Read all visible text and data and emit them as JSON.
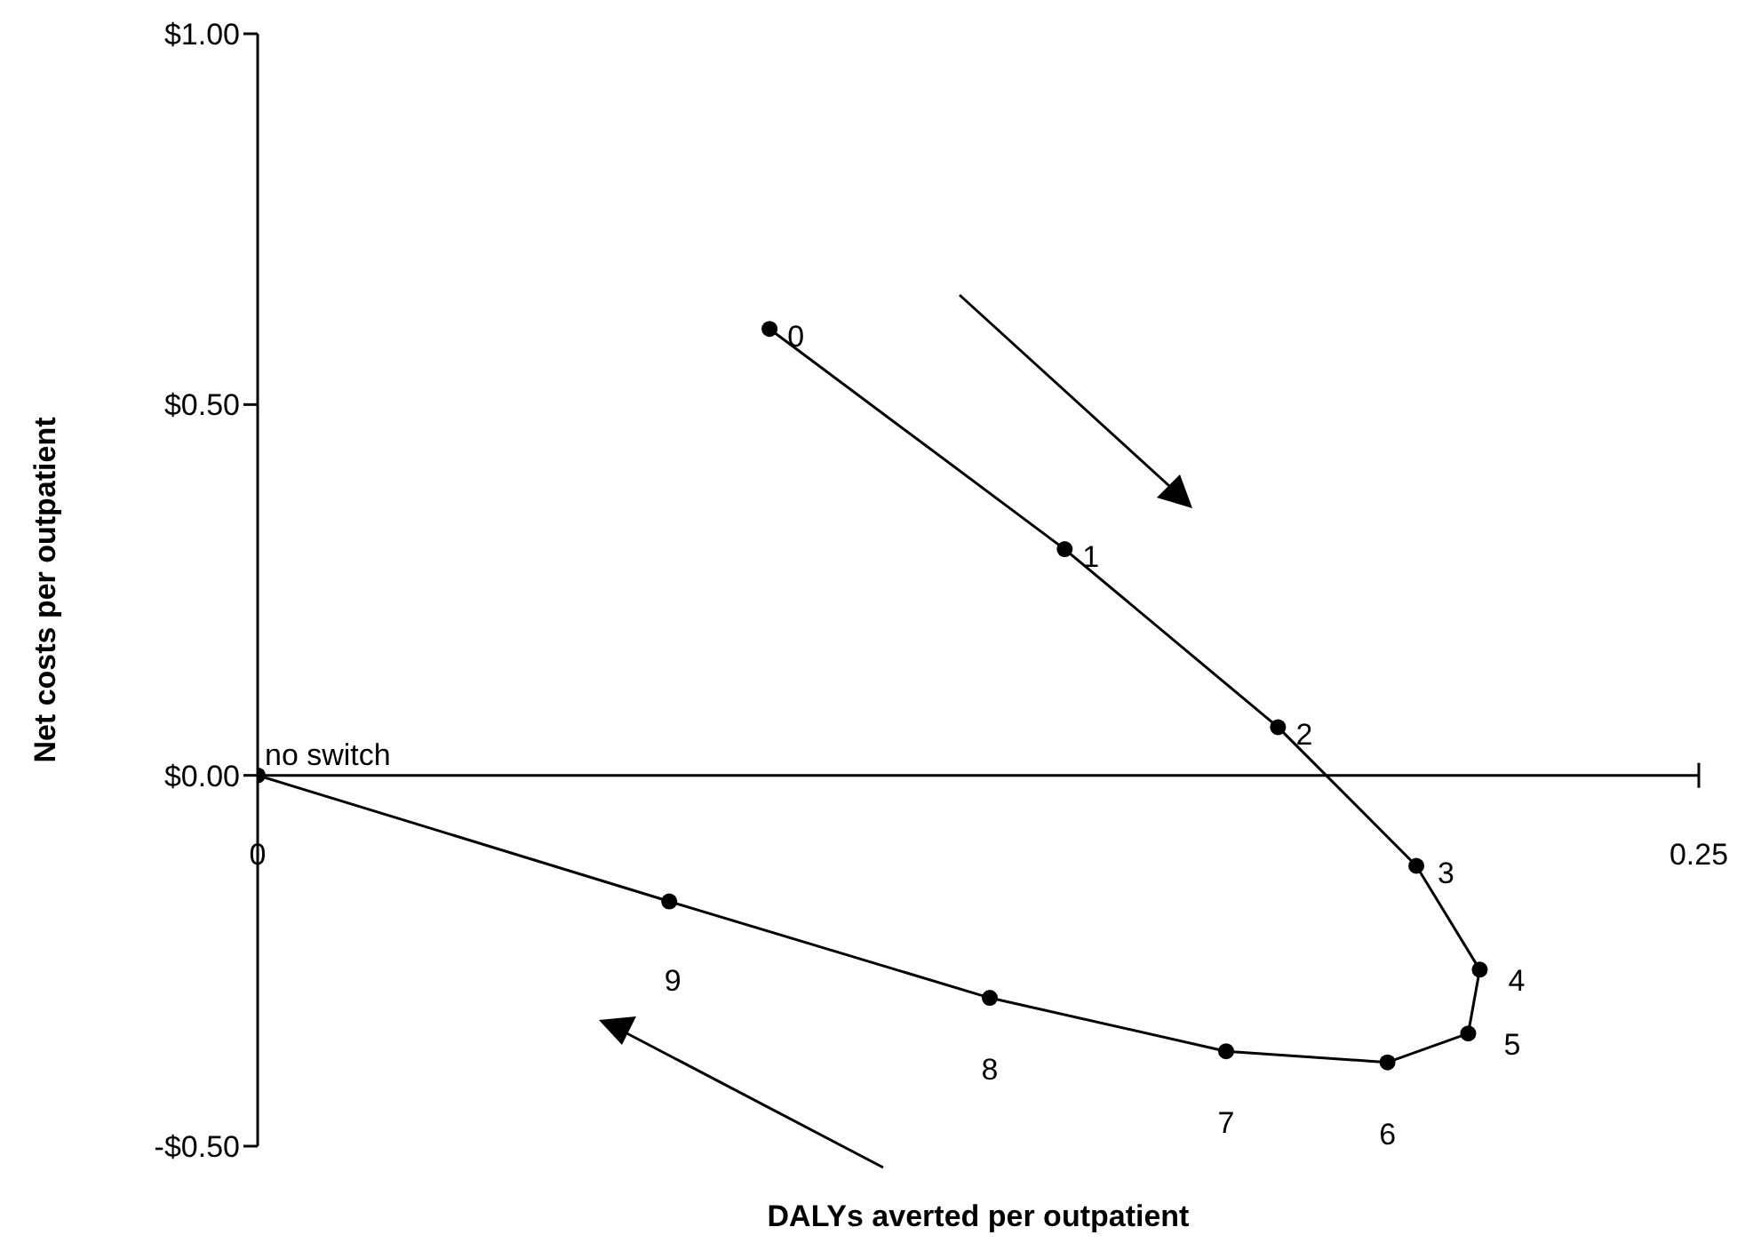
{
  "chart_data": {
    "type": "line",
    "xlabel": "DALYs averted per outpatient",
    "ylabel": "Net costs per outpatient",
    "series": [
      {
        "color": "#000000",
        "x": [
          0.0888,
          0.14,
          0.177,
          0.201,
          0.212,
          0.21,
          0.196,
          0.168,
          0.127,
          0.0714,
          0
        ],
        "values": [
          0.602,
          0.305,
          0.065,
          -0.122,
          -0.262,
          -0.348,
          -0.387,
          -0.372,
          -0.3,
          -0.17,
          0
        ]
      }
    ],
    "xlim": [
      0,
      0.25
    ],
    "xticks": [
      0,
      0.25
    ],
    "ylim": [
      -0.5,
      1
    ],
    "yticks": [
      {
        "value": -0.5,
        "label": "-$0.50"
      },
      {
        "value": 0,
        "label": "$0.00"
      },
      {
        "value": 0.5,
        "label": "$0.50"
      },
      {
        "value": 1,
        "label": "$1.00"
      }
    ],
    "marker": "circle",
    "line_style": "solid",
    "grid": false,
    "legend": false,
    "annotations": [
      {
        "text": "no switch",
        "x": 0,
        "y": 0
      },
      {
        "text": "0",
        "x": 0.0888,
        "y": 0.602
      },
      {
        "text": "1",
        "x": 0.14,
        "y": 0.305
      },
      {
        "text": "2",
        "x": 0.177,
        "y": 0.065
      },
      {
        "text": "3",
        "x": 0.201,
        "y": -0.122
      },
      {
        "text": "4",
        "x": 0.212,
        "y": -0.262
      },
      {
        "text": "5",
        "x": 0.21,
        "y": -0.348
      },
      {
        "text": "6",
        "x": 0.196,
        "y": -0.387
      },
      {
        "text": "7",
        "x": 0.168,
        "y": -0.372
      },
      {
        "text": "8",
        "x": 0.127,
        "y": -0.3
      },
      {
        "text": "9",
        "x": 0.0714,
        "y": -0.17
      }
    ]
  }
}
